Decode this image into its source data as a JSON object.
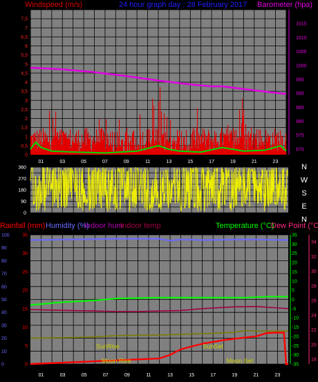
{
  "colors": {
    "windspeed": "#e00000",
    "barometer": "#e000e0",
    "title": "#2020ff",
    "gust": "#00dd00",
    "direction": "#eeee00",
    "rainfall": "#ff0000",
    "humidity": "#6a6aff",
    "indoor_hum": "#b000b0",
    "indoor_temp": "#a00040",
    "temperature": "#00ff00",
    "dewpoint": "#ff2a80",
    "axis_text": "#ff2020",
    "sun_moon": "#cccc00"
  },
  "chart_data": [
    {
      "type": "bar",
      "title": "24 hour graph day : 28 February 2017",
      "left_axis_label": "Windspeed (m/s)",
      "right_axis_label": "Barometer (hpa)",
      "x_ticks": [
        "01",
        "03",
        "05",
        "07",
        "09",
        "11",
        "13",
        "15",
        "17",
        "19",
        "21",
        "23"
      ],
      "left_ylim": [
        0,
        8
      ],
      "left_ticks": [
        "0",
        "0,5",
        "1",
        "1,5",
        "2",
        "2,5",
        "3",
        "3,5",
        "4",
        "4,5",
        "5",
        "5,5",
        "6",
        "6,5",
        "7",
        "7,5"
      ],
      "right_ylim": [
        968,
        1020
      ],
      "right_ticks": [
        "970",
        "975",
        "980",
        "985",
        "990",
        "995",
        "1000",
        "1005",
        "1010",
        "1015"
      ],
      "barometer": {
        "x": [
          0,
          3,
          6,
          9,
          12,
          15,
          17,
          18,
          21,
          23,
          24
        ],
        "values": [
          999.2,
          998.6,
          997.6,
          996.2,
          994.6,
          993.2,
          992.5,
          992.5,
          991.1,
          990.2,
          989.8
        ]
      },
      "gust": {
        "x": [
          0,
          0.5,
          1,
          2,
          4,
          7,
          10,
          12,
          13,
          14,
          16,
          18,
          20,
          22,
          23.5,
          24
        ],
        "values": [
          0.3,
          0.7,
          0.4,
          0.2,
          0.15,
          0.1,
          0.2,
          0.5,
          0.3,
          0.2,
          0.15,
          0.4,
          0.2,
          0.25,
          0.5,
          0.2
        ]
      }
    },
    {
      "type": "scatter",
      "series": "wind direction",
      "ylim": [
        0,
        360
      ],
      "y_ticks": [
        "0",
        "90",
        "180",
        "270",
        "360"
      ],
      "compass_labels": [
        "N",
        "W",
        "S",
        "E",
        "N"
      ]
    },
    {
      "type": "line",
      "left_axis_labels": [
        "Rainfall (mm)",
        "Humidity (%)",
        "Indoor hum",
        "Indoor temp"
      ],
      "right_axis_labels": [
        "Temperature (°C)",
        "Dew Point (°C)"
      ],
      "x_ticks": [
        "01",
        "03",
        "05",
        "07",
        "09",
        "11",
        "13",
        "15",
        "17",
        "19",
        "21",
        "23"
      ],
      "humidity_ticks": [
        "0",
        "10",
        "20",
        "30",
        "40",
        "50",
        "60",
        "70",
        "80",
        "90",
        "100"
      ],
      "rain_ticks": [
        "0",
        "5",
        "10",
        "15",
        "20",
        "25",
        "30",
        "35"
      ],
      "temp_ticks": [
        "35",
        "30",
        "25",
        "20",
        "15",
        "10",
        "5",
        "0",
        "-5",
        "-10",
        "-15",
        "-20",
        "-25",
        "-30",
        "-35"
      ],
      "dew_ticks": [
        "34",
        "32",
        "30",
        "28",
        "26",
        "24",
        "22",
        "20",
        "18"
      ],
      "humidity": {
        "x": [
          0,
          4,
          8,
          12,
          13,
          14,
          16,
          20,
          24
        ],
        "values": [
          96,
          96.5,
          97,
          97,
          95.5,
          96.5,
          96,
          96.5,
          96
        ]
      },
      "temperature": {
        "x": [
          0,
          3,
          6,
          8,
          12,
          16,
          20,
          22,
          24
        ],
        "values": [
          -3,
          -1.5,
          -0.5,
          0.5,
          1,
          1,
          1,
          1.5,
          1.5
        ]
      },
      "indoor_temp": {
        "x": [
          0,
          4,
          8,
          10,
          14,
          16,
          19,
          21,
          24
        ],
        "values": [
          -5.5,
          -6,
          -6.5,
          -6.5,
          -6,
          -5,
          -4,
          -3.8,
          -5
        ]
      },
      "indoor_hum": {
        "x": [
          0,
          4,
          6,
          8,
          12,
          16,
          19,
          20,
          21,
          24
        ],
        "values": [
          20,
          20.5,
          21,
          22,
          22.5,
          23.5,
          24.5,
          26,
          25.5,
          25.5
        ]
      },
      "rainfall": {
        "x": [
          0,
          12,
          13,
          14,
          16,
          18,
          20,
          21,
          22,
          23,
          23.6,
          23.8,
          24
        ],
        "values": [
          0,
          1.5,
          2.5,
          4,
          5.5,
          6.5,
          7.2,
          7.5,
          8.4,
          8.5,
          8.5,
          0,
          0
        ]
      },
      "annotations": [
        {
          "label": "SunRise",
          "x": 7.2,
          "y": 4.2
        },
        {
          "label": "SunSet",
          "x": 17.0,
          "y": 4.2
        },
        {
          "label": "Moon Rise",
          "x": 8.0,
          "y": 0.3
        },
        {
          "label": "Moon Set",
          "x": 19.5,
          "y": 0.3
        }
      ]
    }
  ]
}
